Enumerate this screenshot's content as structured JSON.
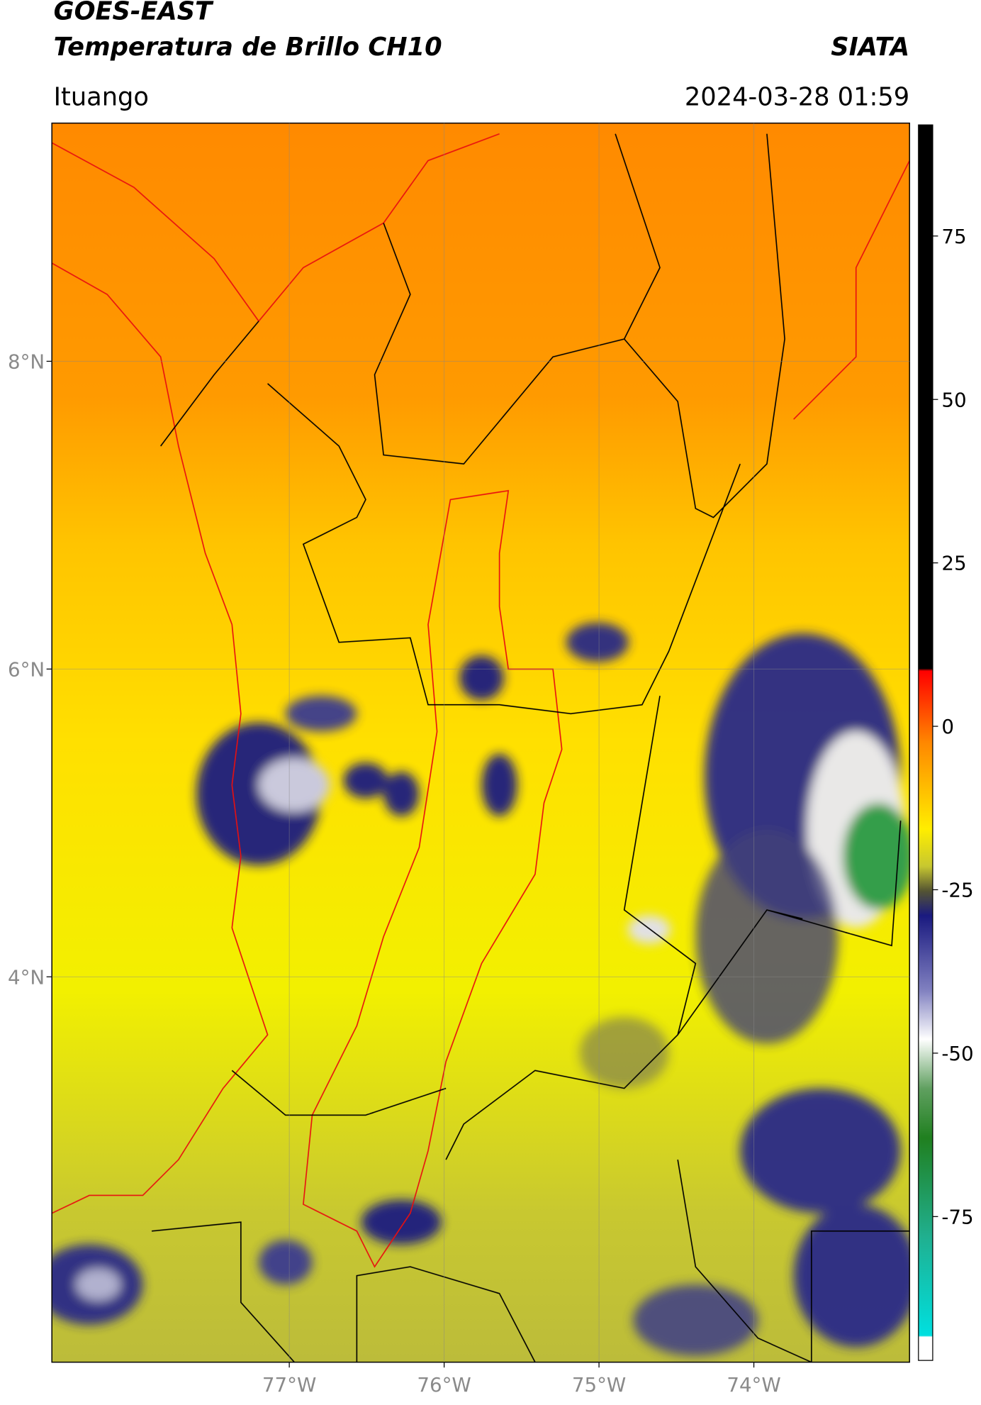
{
  "header": {
    "satellite": "GOES-EAST",
    "product": "Temperatura de Brillo CH10",
    "institution": "SIATA",
    "region": "Ituango",
    "datetime": "2024-03-28 01:59"
  },
  "map": {
    "lat_ticks": [
      {
        "value": 8,
        "label": "8°N"
      },
      {
        "value": 6,
        "label": "6°N"
      },
      {
        "value": 4,
        "label": "4°N"
      }
    ],
    "lon_ticks": [
      {
        "value": -77,
        "label": "77°W"
      },
      {
        "value": -76,
        "label": "76°W"
      },
      {
        "value": -75,
        "label": "75°W"
      },
      {
        "value": -74,
        "label": "74°W"
      }
    ]
  },
  "colorbar": {
    "lim": [
      -97,
      92
    ],
    "ticks": [
      75,
      50,
      25,
      0,
      -25,
      -50,
      -75
    ]
  }
}
